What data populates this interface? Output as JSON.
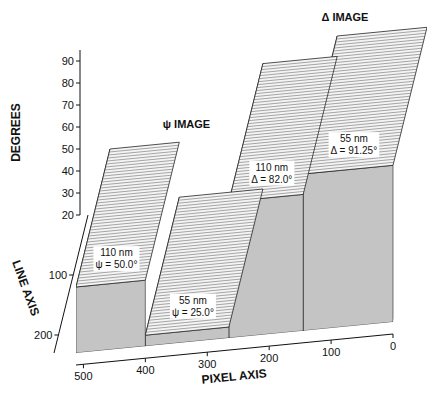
{
  "chart_data": {
    "type": "surface3d",
    "xlabel": "PIXEL AXIS",
    "ylabel": "LINE AXIS",
    "zlabel": "DEGREES",
    "xlim": [
      512,
      0
    ],
    "xticks": [
      500,
      400,
      300,
      200,
      100,
      0
    ],
    "ylim": [
      0,
      230
    ],
    "yticks": [
      100,
      200
    ],
    "zlim": [
      20,
      95
    ],
    "zticks": [
      20,
      30,
      40,
      50,
      60,
      70,
      80,
      90
    ],
    "images": [
      {
        "title": "ψ IMAGE",
        "regions": [
          {
            "x": [
              512,
              400
            ],
            "value": 50.0,
            "label": "110 nm",
            "value_label": "ψ = 50.0°"
          },
          {
            "x": [
              400,
              265
            ],
            "value": 25.0,
            "label": "55 nm",
            "value_label": "ψ = 25.0°"
          }
        ]
      },
      {
        "title": "Δ IMAGE",
        "regions": [
          {
            "x": [
              265,
              145
            ],
            "value": 82.0,
            "label": "110 nm",
            "value_label": "Δ = 82.0°"
          },
          {
            "x": [
              145,
              0
            ],
            "value": 91.25,
            "label": "55 nm",
            "value_label": "Δ = 91.25°"
          }
        ]
      }
    ]
  }
}
